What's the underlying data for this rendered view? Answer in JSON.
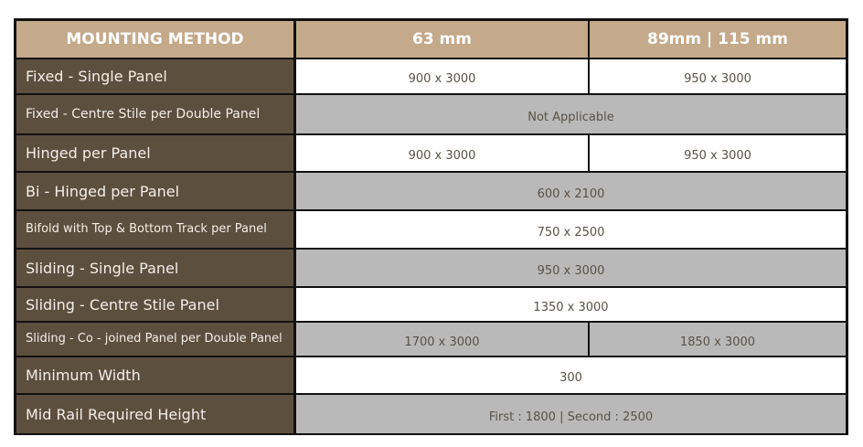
{
  "header": {
    "col1": "MOUNTING METHOD",
    "col2": "63 mm",
    "col3": "89mm | 115 mm"
  },
  "rows": [
    {
      "label": "Fixed - Single Panel",
      "v1": "900 x 3000",
      "v2": "950 x 3000",
      "shade": "white"
    },
    {
      "label": "Fixed - Centre Stile per Double Panel",
      "span": "Not Applicable",
      "shade": "grey"
    },
    {
      "label": "Hinged per Panel",
      "v1": "900 x 3000",
      "v2": "950 x 3000",
      "shade": "white"
    },
    {
      "label": "Bi - Hinged per Panel",
      "span": "600 x 2100",
      "shade": "grey"
    },
    {
      "label": "Bifold with Top & Bottom Track per Panel",
      "span": "750 x 2500",
      "shade": "white"
    },
    {
      "label": "Sliding - Single Panel",
      "span": "950 x 3000",
      "shade": "grey"
    },
    {
      "label": "Sliding - Centre Stile Panel",
      "span": "1350 x 3000",
      "shade": "white"
    },
    {
      "label": "Sliding - Co - joined Panel per Double Panel",
      "v1": "1700 x 3000",
      "v2": "1850 x 3000",
      "shade": "grey"
    },
    {
      "label": "Minimum Width",
      "span": "300",
      "shade": "white"
    },
    {
      "label": "Mid Rail Required Height",
      "span": "First : 1800 | Second : 2500",
      "shade": "grey"
    }
  ],
  "colors": {
    "header": "#c4a98a",
    "label_column": "#5d4f3e",
    "grey_row": "#b9b9b9",
    "border": "#111111"
  }
}
